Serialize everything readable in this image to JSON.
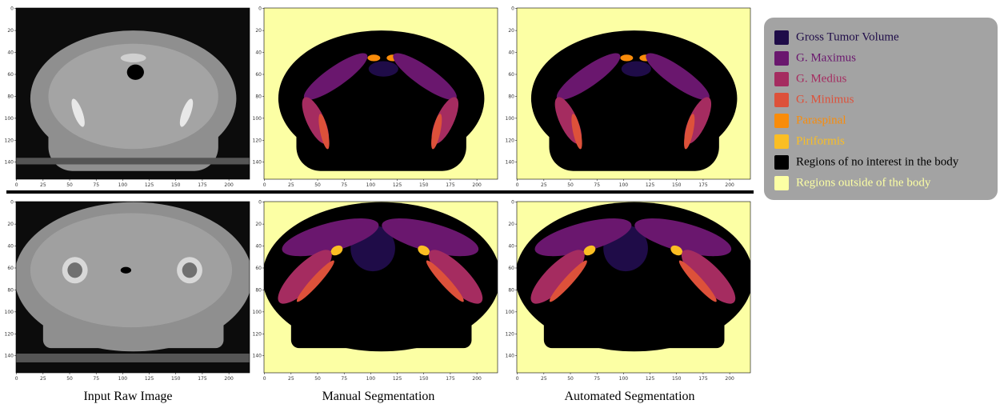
{
  "columns": [
    "Input Raw Image",
    "Manual Segmentation",
    "Automated Segmentation"
  ],
  "axes": {
    "xlim": [
      -0.5,
      219.5
    ],
    "ylim": [
      -0.5,
      155.5
    ],
    "xticks": [
      0,
      25,
      50,
      75,
      100,
      125,
      150,
      175,
      200
    ],
    "yticks": [
      0,
      20,
      40,
      60,
      80,
      100,
      120,
      140
    ]
  },
  "legend": [
    {
      "label": "Gross Tumor Volume",
      "color": "#1f0c48"
    },
    {
      "label": "G. Maximus",
      "color": "#6a176e"
    },
    {
      "label": "G. Medius",
      "color": "#a52c60"
    },
    {
      "label": "G. Minimus",
      "color": "#dd513a"
    },
    {
      "label": "Paraspinal",
      "color": "#f98c0a"
    },
    {
      "label": "Piriformis",
      "color": "#fbbe23"
    },
    {
      "label": "Regions of no interest in the body",
      "color": "#000000"
    },
    {
      "label": "Regions outside of the body",
      "color": "#fcffa4"
    }
  ]
}
